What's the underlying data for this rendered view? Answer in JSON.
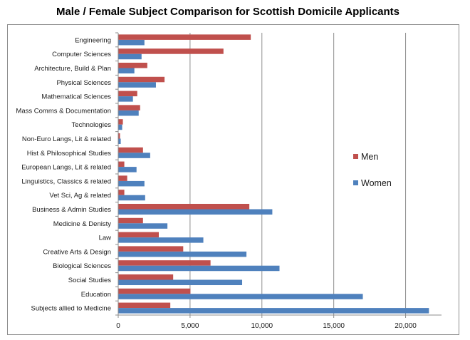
{
  "chart_data": {
    "type": "bar",
    "orientation": "horizontal",
    "title": "Male / Female Subject Comparison for Scottish Domicile Applicants",
    "xlabel": "",
    "ylabel": "",
    "xlim": [
      0,
      22500
    ],
    "xticks": [
      0,
      5000,
      10000,
      15000,
      20000
    ],
    "xtick_labels": [
      "0",
      "5,000",
      "10,000",
      "15,000",
      "20,000"
    ],
    "grid": true,
    "legend_position": "right",
    "categories": [
      "Engineering",
      "Computer Sciences",
      "Architecture, Build & Plan",
      "Physical Sciences",
      "Mathematical Sciences",
      "Mass Comms & Documentation",
      "Technologies",
      "Non-Euro Langs, Lit & related",
      "Hist & Philosophical Studies",
      "European Langs, Lit & related",
      "Linguistics, Classics & related",
      "Vet Sci, Ag & related",
      "Business & Admin Studies",
      "Medicine & Denisty",
      "Law",
      "Creative Arts & Design",
      "Biological Sciences",
      "Social Studies",
      "Education",
      "Subjects allied to Medicine"
    ],
    "series": [
      {
        "name": "Men",
        "color": "#c0504d",
        "values": [
          9200,
          7300,
          2000,
          3200,
          1300,
          1500,
          300,
          100,
          1700,
          400,
          600,
          400,
          9100,
          1700,
          2800,
          4500,
          6400,
          3800,
          5000,
          3600
        ]
      },
      {
        "name": "Women",
        "color": "#4f81bd",
        "values": [
          1800,
          1600,
          1100,
          2600,
          1000,
          1400,
          250,
          150,
          2200,
          1250,
          1800,
          1850,
          10700,
          3400,
          5900,
          8900,
          11200,
          8600,
          17000,
          21600
        ]
      }
    ]
  }
}
